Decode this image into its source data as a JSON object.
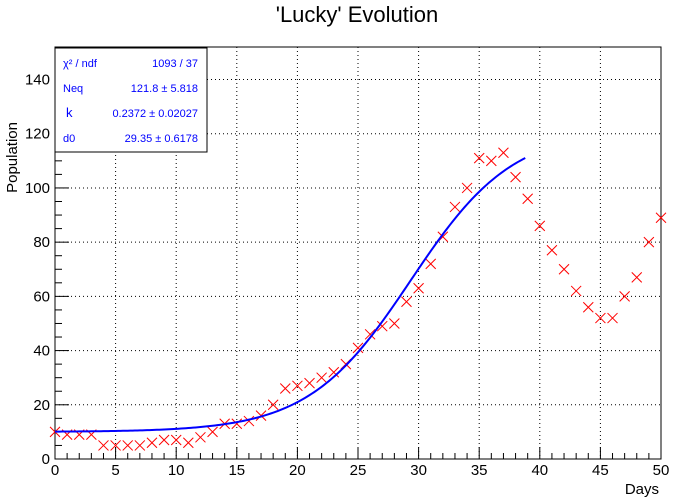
{
  "chart_data": {
    "type": "scatter",
    "title": "'Lucky' Evolution",
    "xlabel": "Days",
    "ylabel": "Population",
    "xlim": [
      0,
      50
    ],
    "ylim": [
      0,
      152
    ],
    "grid": true,
    "x_ticks": [
      0,
      5,
      10,
      15,
      20,
      25,
      30,
      35,
      40,
      45,
      50
    ],
    "y_ticks": [
      0,
      20,
      40,
      60,
      80,
      100,
      120,
      140
    ],
    "points": {
      "color": "#ff0000",
      "marker": "x",
      "x": [
        0,
        1,
        2,
        3,
        4,
        5,
        6,
        7,
        8,
        9,
        10,
        11,
        12,
        13,
        14,
        15,
        16,
        17,
        18,
        19,
        20,
        21,
        22,
        23,
        24,
        25,
        26,
        27,
        28,
        29,
        30,
        31,
        32,
        33,
        34,
        35,
        36,
        37,
        38,
        39,
        40,
        41,
        42,
        43,
        44,
        45,
        46,
        47,
        48,
        49,
        50
      ],
      "y": [
        10,
        9,
        9,
        9,
        5,
        5,
        5,
        5,
        6,
        7,
        7,
        6,
        8,
        10,
        13,
        13,
        14,
        16,
        20,
        26,
        27,
        28,
        30,
        32,
        35,
        41,
        46,
        49,
        50,
        58,
        63,
        72,
        82,
        93,
        100,
        111,
        110,
        113,
        104,
        96,
        86,
        77,
        70,
        62,
        56,
        52,
        52,
        60,
        67,
        80,
        89
      ]
    },
    "fit": {
      "color": "#0000ff",
      "model": "logistic",
      "x_range": [
        0,
        38.8
      ],
      "params": {
        "Neq": 121.8,
        "k": 0.2372,
        "d0": 29.35,
        "offset": 10
      }
    },
    "stats_box": [
      {
        "label": "χ² / ndf",
        "value": "1093 / 37"
      },
      {
        "label": "Neq",
        "value": "121.8 ± 5.818"
      },
      {
        "label": "k",
        "value": "0.2372 ± 0.02027"
      },
      {
        "label": "d0",
        "value": "29.35 ± 0.6178"
      }
    ]
  }
}
